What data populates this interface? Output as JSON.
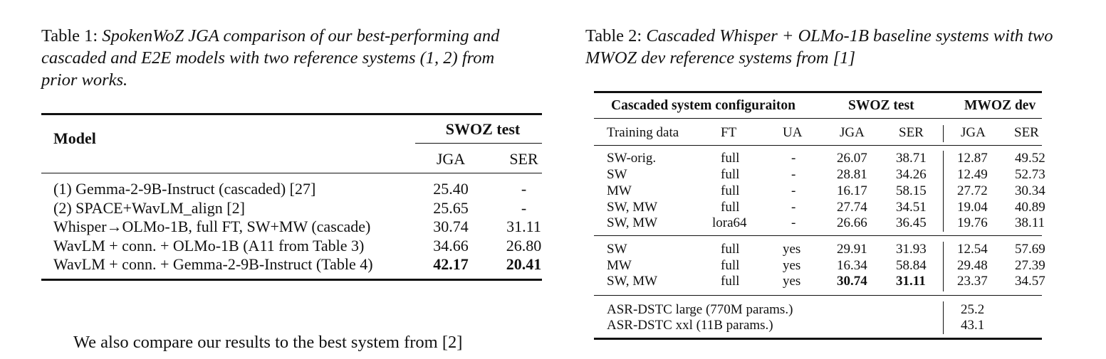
{
  "table1": {
    "caption_label": "Table 1:",
    "caption_text": "SpokenWoZ JGA comparison of our best-performing and cascaded and E2E models with two reference systems (1, 2) from prior works.",
    "header": {
      "model": "Model",
      "group": "SWOZ test",
      "jga": "JGA",
      "ser": "SER"
    },
    "rows": [
      {
        "model": "(1) Gemma-2-9B-Instruct (cascaded) [27]",
        "jga": "25.40",
        "ser": "-"
      },
      {
        "model": "(2) SPACE+WavLM_align [2]",
        "jga": "25.65",
        "ser": "-"
      },
      {
        "model": "Whisper→OLMo-1B, full FT, SW+MW (cascade)",
        "jga": "30.74",
        "ser": "31.11"
      },
      {
        "model": "WavLM + conn. + OLMo-1B (A11 from Table 3)",
        "jga": "34.66",
        "ser": "26.80"
      },
      {
        "model": "WavLM + conn. + Gemma-2-9B-Instruct (Table 4)",
        "jga": "42.17",
        "ser": "20.41"
      }
    ]
  },
  "table2": {
    "caption_label": "Table 2:",
    "caption_text": "Cascaded Whisper + OLMo-1B baseline systems with two MWOZ dev reference systems from [1]",
    "group_headers": {
      "config": "Cascaded system configuraiton",
      "swoz": "SWOZ test",
      "mwoz": "MWOZ dev"
    },
    "col_headers": {
      "training": "Training data",
      "ft": "FT",
      "ua": "UA",
      "jga": "JGA",
      "ser": "SER",
      "mjga": "JGA",
      "mser": "SER"
    },
    "block1": [
      {
        "training": "SW-orig.",
        "ft": "full",
        "ua": "-",
        "jga": "26.07",
        "ser": "38.71",
        "mjga": "12.87",
        "mser": "49.52"
      },
      {
        "training": "SW",
        "ft": "full",
        "ua": "-",
        "jga": "28.81",
        "ser": "34.26",
        "mjga": "12.49",
        "mser": "52.73"
      },
      {
        "training": "MW",
        "ft": "full",
        "ua": "-",
        "jga": "16.17",
        "ser": "58.15",
        "mjga": "27.72",
        "mser": "30.34"
      },
      {
        "training": "SW, MW",
        "ft": "full",
        "ua": "-",
        "jga": "27.74",
        "ser": "34.51",
        "mjga": "19.04",
        "mser": "40.89"
      },
      {
        "training": "SW, MW",
        "ft": "lora64",
        "ua": "-",
        "jga": "26.66",
        "ser": "36.45",
        "mjga": "19.76",
        "mser": "38.11"
      }
    ],
    "block2": [
      {
        "training": "SW",
        "ft": "full",
        "ua": "yes",
        "jga": "29.91",
        "ser": "31.93",
        "mjga": "12.54",
        "mser": "57.69"
      },
      {
        "training": "MW",
        "ft": "full",
        "ua": "yes",
        "jga": "16.34",
        "ser": "58.84",
        "mjga": "29.48",
        "mser": "27.39"
      },
      {
        "training": "SW, MW",
        "ft": "full",
        "ua": "yes",
        "jga": "30.74",
        "ser": "31.11",
        "mjga": "23.37",
        "mser": "34.57"
      }
    ],
    "block3": [
      {
        "training": "ASR-DSTC large (770M params.)",
        "mjga": "25.2"
      },
      {
        "training": "ASR-DSTC xxl (11B params.)",
        "mjga": "43.1"
      }
    ]
  },
  "body_text": "We also compare our results to the best system from [2]"
}
